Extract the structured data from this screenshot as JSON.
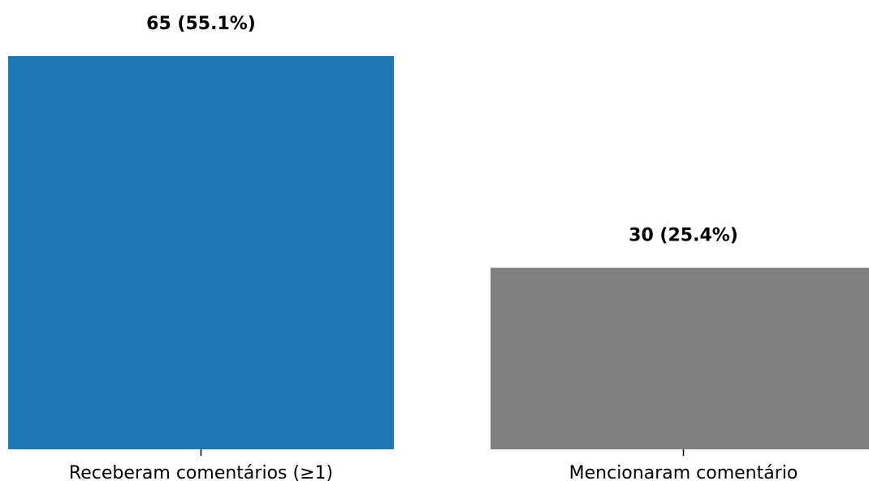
{
  "chart_data": {
    "type": "bar",
    "categories": [
      "Receberam comentários (≥1)",
      "Mencionaram comentário"
    ],
    "values": [
      65,
      30
    ],
    "percentages": [
      55.1,
      25.4
    ],
    "data_labels": [
      "65 (55.1%)",
      "30 (25.4%)"
    ],
    "colors": [
      "#1f77b4",
      "#7f7f7f"
    ],
    "ylim": [
      0,
      65
    ],
    "grid": false,
    "legend": false
  }
}
